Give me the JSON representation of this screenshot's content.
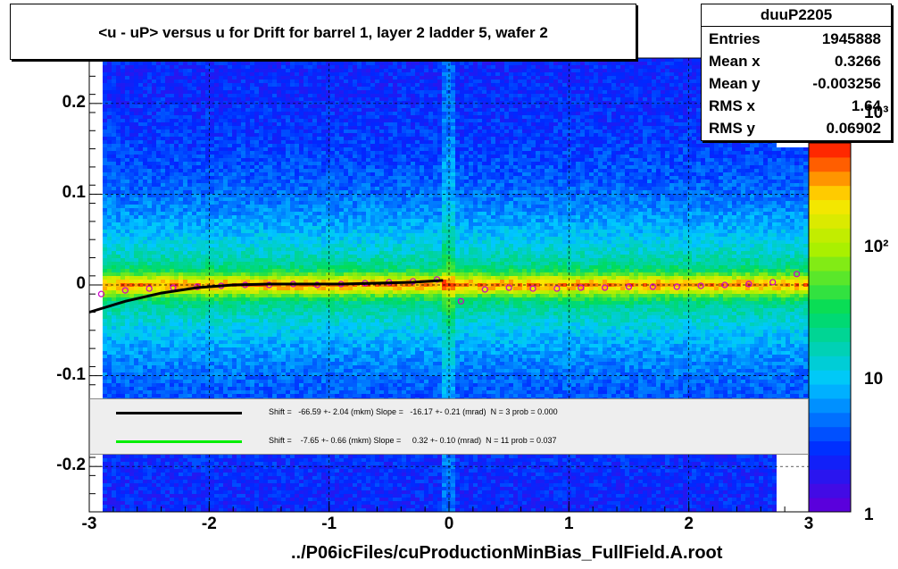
{
  "title": "<u - uP>       versus   u for Drift for barrel 1, layer 2 ladder 5, wafer 2",
  "stats": {
    "name": "duuP2205",
    "entries_label": "Entries",
    "entries": "1945888",
    "meanx_label": "Mean x",
    "meanx": "0.3266",
    "meany_label": "Mean y",
    "meany": "-0.003256",
    "rmsx_label": "RMS x",
    "rmsx": "1.64",
    "rmsy_label": "RMS y",
    "rmsy": "0.06902"
  },
  "fit_legend": [
    {
      "color": "#000000",
      "text": "Shift =   -66.59 +- 2.04 (mkm) Slope =   -16.17 +- 0.21 (mrad)  N = 3 prob = 0.000"
    },
    {
      "color": "#00ee00",
      "text": "Shift =    -7.65 +- 0.66 (mkm) Slope =     0.32 +- 0.10 (mrad)  N = 11 prob = 0.037"
    }
  ],
  "xlabel": "../P06icFiles/cuProductionMinBias_FullField.A.root",
  "colors": {
    "frame": "#000000",
    "profile_marker": "#cc00cc",
    "fit1": "#000000",
    "fit2": "#00ee00"
  },
  "chart_data": {
    "type": "heatmap",
    "title": "<u - uP>       versus   u for Drift for barrel 1, layer 2 ladder 5, wafer 2",
    "xlabel": "../P06icFiles/cuProductionMinBias_FullField.A.root",
    "ylabel": "",
    "xlim": [
      -3,
      3
    ],
    "ylim": [
      -0.25,
      0.25
    ],
    "x_ticks": [
      -3,
      -2,
      -1,
      0,
      1,
      2,
      3
    ],
    "y_ticks": [
      -0.2,
      -0.1,
      0,
      0.1,
      0.2
    ],
    "y_tick_labels": [
      "-0.2",
      "-0.1",
      "0",
      "0.1",
      "0.2"
    ],
    "z_scale": "log",
    "z_tick_labels": [
      "1",
      "10",
      "10²",
      "10³"
    ],
    "grid": true,
    "profile_points": {
      "x": [
        -2.9,
        -2.7,
        -2.5,
        -2.3,
        -2.1,
        -1.9,
        -1.7,
        -1.5,
        -1.3,
        -1.1,
        -0.9,
        -0.7,
        -0.5,
        -0.3,
        -0.1,
        0.1,
        0.3,
        0.5,
        0.7,
        0.9,
        1.1,
        1.3,
        1.5,
        1.7,
        1.9,
        2.1,
        2.3,
        2.5,
        2.7,
        2.9
      ],
      "y": [
        -0.01,
        -0.006,
        -0.004,
        -0.003,
        -0.002,
        -0.001,
        0.0,
        0.0,
        0.001,
        0.0,
        0.001,
        0.002,
        0.003,
        0.004,
        0.006,
        -0.018,
        -0.005,
        -0.003,
        -0.004,
        -0.004,
        -0.003,
        -0.003,
        -0.002,
        -0.002,
        -0.002,
        -0.001,
        0.0,
        0.001,
        0.003,
        0.012
      ]
    },
    "fit_curve": {
      "x": [
        -3.0,
        -2.7,
        -2.4,
        -2.1,
        -1.8,
        -1.5,
        -1.2,
        -0.9,
        -0.6,
        -0.3,
        -0.05
      ],
      "y": [
        -0.03,
        -0.018,
        -0.009,
        -0.003,
        0.0,
        0.001,
        0.001,
        0.001,
        0.002,
        0.003,
        0.005
      ]
    }
  }
}
